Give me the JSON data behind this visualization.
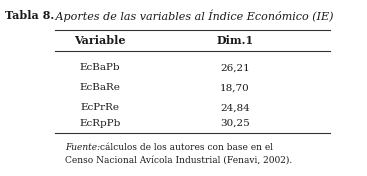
{
  "title_bold": "Tabla 8.",
  "title_italic": " Aportes de las variables al Índice Económico (IE)",
  "col_headers": [
    "Variable",
    "Dim.1"
  ],
  "rows": [
    [
      "EcBaPb",
      "26,21"
    ],
    [
      "EcBaRe",
      "18,70"
    ],
    [
      "EcPrRe",
      "24,84"
    ],
    [
      "EcRpPb",
      "30,25"
    ]
  ],
  "footnote_italic": "Fuente:",
  "footnote_normal": " cálculos de los autores con base en el",
  "footnote_line2": "Censo Nacional Avícola Industrial (Fenavi, 2002).",
  "background_color": "#ffffff",
  "text_color": "#1a1a1a",
  "line_color": "#333333",
  "fig_width": 3.67,
  "fig_height": 1.76,
  "dpi": 100
}
